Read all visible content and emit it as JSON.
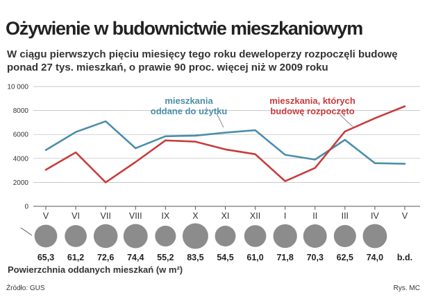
{
  "title": "Ożywienie w budownictwie mieszkaniowym",
  "subtitle": "W ciągu pierwszych pięciu miesięcy tego roku deweloperzy rozpoczęli budowę ponad 27 tys. mieszkań, o prawie 90 proc. więcej niż w 2009 roku",
  "chart_data": {
    "type": "line",
    "categories": [
      "V",
      "VI",
      "VII",
      "VIII",
      "IX",
      "X",
      "XI",
      "XII",
      "I",
      "II",
      "III",
      "IV",
      "V"
    ],
    "yticks": [
      "0",
      "2000",
      "4000",
      "6000",
      "8000",
      "10 000"
    ],
    "ylim": [
      0,
      10000
    ],
    "grid": true,
    "series": [
      {
        "name": "mieszkania oddane do użytku",
        "label_lines": [
          "mieszkania",
          "oddane do użytku"
        ],
        "color": "#4a8eab",
        "values": [
          4700,
          6200,
          7100,
          4850,
          5850,
          5900,
          6150,
          6350,
          4300,
          3900,
          5550,
          3600,
          3550
        ]
      },
      {
        "name": "mieszkania, których budowę rozpoczęto",
        "label_lines": [
          "mieszkania, których",
          "budowę rozpoczęto"
        ],
        "color": "#c83c3c",
        "values": [
          3050,
          4500,
          2000,
          3700,
          5500,
          5400,
          4750,
          4350,
          2100,
          3200,
          6250,
          7350,
          8350
        ]
      }
    ],
    "bubbles": {
      "title": "Powierzchnia oddanych mieszkań (w m²)",
      "values": [
        65.3,
        61.2,
        72.6,
        74.4,
        55.2,
        83.5,
        54.5,
        61.0,
        71.8,
        70.3,
        62.5,
        74.0,
        null
      ],
      "labels": [
        "65,3",
        "61,2",
        "72,6",
        "74,4",
        "55,2",
        "83,5",
        "54,5",
        "61,0",
        "71,8",
        "70,3",
        "62,5",
        "74,0",
        "b.d."
      ],
      "color": "#8c8c8c"
    }
  },
  "footer": {
    "source": "Źródło: GUS",
    "credit": "Rys. MC"
  }
}
